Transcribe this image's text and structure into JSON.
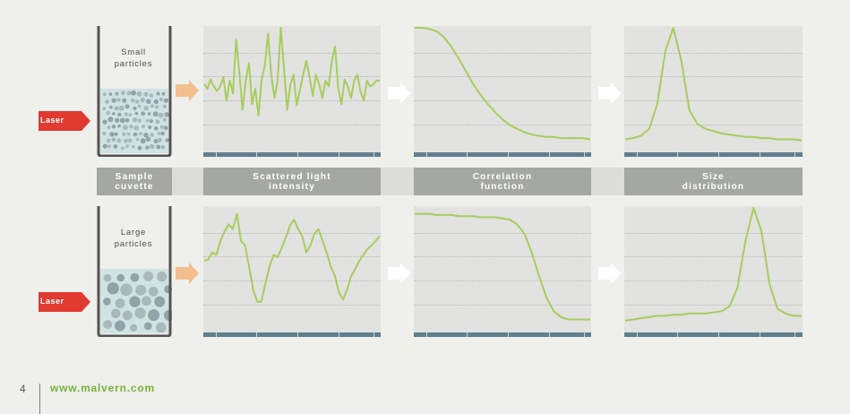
{
  "headers": {
    "sample": "Sample\ncuvette",
    "scattered": "Scattered light\nintensity",
    "correlation": "Correlation\nfunction",
    "size": "Size\ndistribution"
  },
  "rows": [
    {
      "cuvette_label": "Small\nparticles",
      "laser_label": "Laser"
    },
    {
      "cuvette_label": "Large\nparticles",
      "laser_label": "Laser"
    }
  ],
  "footer": {
    "page_number": "4",
    "website": "www.malvern.com"
  },
  "colors": {
    "curve": "#a8cd5e",
    "laser": "#e03a31",
    "arrow_orange": "#f2bf8e",
    "axis": "#5f7f8e",
    "header": "#a5a7a4",
    "url": "#7ab23d"
  },
  "chart_data": [
    {
      "type": "line",
      "panel": "small-scattered",
      "y": [
        0.52,
        0.48,
        0.56,
        0.5,
        0.46,
        0.5,
        0.58,
        0.38,
        0.55,
        0.44,
        0.9,
        0.62,
        0.3,
        0.55,
        0.7,
        0.35,
        0.48,
        0.25,
        0.56,
        0.68,
        0.95,
        0.6,
        0.4,
        0.55,
        1.0,
        0.65,
        0.3,
        0.52,
        0.6,
        0.34,
        0.47,
        0.6,
        0.72,
        0.58,
        0.42,
        0.6,
        0.52,
        0.4,
        0.55,
        0.5,
        0.72,
        0.84,
        0.48,
        0.35,
        0.56,
        0.5,
        0.4,
        0.55,
        0.6,
        0.45,
        0.38,
        0.55,
        0.5,
        0.52,
        0.55,
        0.55
      ]
    },
    {
      "type": "line",
      "panel": "small-correlation",
      "y": [
        1.0,
        1.0,
        0.99,
        0.97,
        0.92,
        0.84,
        0.74,
        0.63,
        0.52,
        0.43,
        0.35,
        0.28,
        0.22,
        0.17,
        0.14,
        0.11,
        0.09,
        0.08,
        0.07,
        0.07,
        0.06,
        0.06,
        0.06,
        0.06,
        0.05
      ]
    },
    {
      "type": "line",
      "panel": "small-size",
      "y": [
        0.05,
        0.06,
        0.08,
        0.14,
        0.35,
        0.8,
        1.0,
        0.72,
        0.3,
        0.18,
        0.14,
        0.12,
        0.1,
        0.09,
        0.08,
        0.07,
        0.07,
        0.06,
        0.06,
        0.05,
        0.05,
        0.05,
        0.04
      ]
    },
    {
      "type": "line",
      "panel": "large-scattered",
      "y": [
        0.55,
        0.56,
        0.62,
        0.6,
        0.72,
        0.8,
        0.86,
        0.82,
        0.95,
        0.72,
        0.68,
        0.5,
        0.3,
        0.2,
        0.2,
        0.36,
        0.5,
        0.6,
        0.58,
        0.66,
        0.75,
        0.85,
        0.9,
        0.82,
        0.76,
        0.62,
        0.68,
        0.78,
        0.82,
        0.72,
        0.62,
        0.5,
        0.42,
        0.28,
        0.22,
        0.3,
        0.42,
        0.48,
        0.55,
        0.6,
        0.65,
        0.68,
        0.72,
        0.76
      ]
    },
    {
      "type": "line",
      "panel": "large-correlation",
      "y": [
        0.95,
        0.95,
        0.95,
        0.94,
        0.94,
        0.94,
        0.93,
        0.93,
        0.93,
        0.92,
        0.92,
        0.92,
        0.91,
        0.9,
        0.86,
        0.78,
        0.62,
        0.42,
        0.24,
        0.12,
        0.07,
        0.05,
        0.05,
        0.05,
        0.05
      ]
    },
    {
      "type": "line",
      "panel": "large-size",
      "y": [
        0.04,
        0.05,
        0.06,
        0.07,
        0.08,
        0.08,
        0.09,
        0.09,
        0.1,
        0.1,
        0.1,
        0.11,
        0.12,
        0.16,
        0.32,
        0.72,
        1.0,
        0.8,
        0.35,
        0.14,
        0.1,
        0.08,
        0.08
      ]
    }
  ]
}
